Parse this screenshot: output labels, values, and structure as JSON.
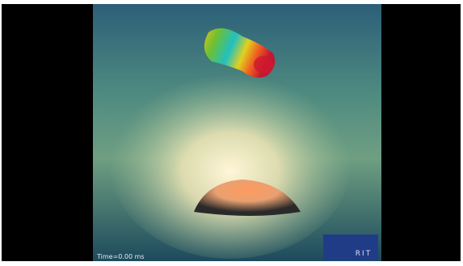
{
  "caption": "Time=0.00 ms",
  "logo": "RIT"
}
